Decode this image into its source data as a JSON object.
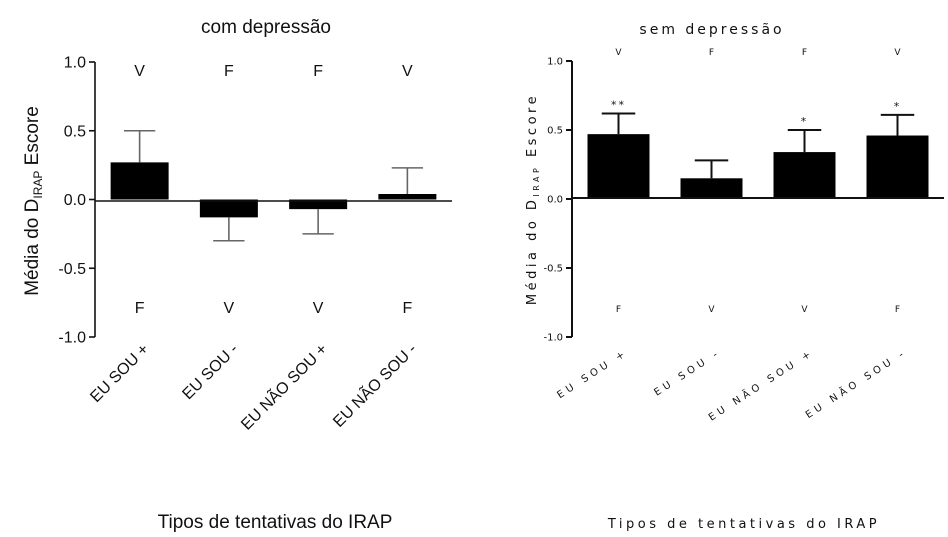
{
  "chart_data": [
    {
      "type": "bar",
      "title": "com depressão",
      "xlabel": "Tipos de tentativas do IRAP",
      "ylabel": {
        "prefix": "Média do D",
        "sub": "IRAP",
        "suffix": " Escore"
      },
      "categories": [
        "EU SOU +",
        "EU SOU -",
        "EU NÃO SOU +",
        "EU NÃO SOU -"
      ],
      "values": [
        0.27,
        -0.13,
        -0.07,
        0.04
      ],
      "error": [
        0.23,
        0.17,
        0.18,
        0.19
      ],
      "error_direction": [
        "up",
        "down",
        "down",
        "up"
      ],
      "ylim": [
        -1.0,
        1.0
      ],
      "yticks": [
        "-1.0",
        "-0.5",
        "0.0",
        "0.5",
        "1.0"
      ],
      "top_labels": [
        "V",
        "F",
        "F",
        "V"
      ],
      "bottom_labels": [
        "F",
        "V",
        "V",
        "F"
      ],
      "significance": [
        "",
        "",
        "",
        ""
      ],
      "grid": false,
      "legend": "none"
    },
    {
      "type": "bar",
      "title": "sem depressão",
      "xlabel": "Tipos de tentativas do IRAP",
      "ylabel": {
        "prefix": "Média do D",
        "sub": "IRAP",
        "suffix": " Escore"
      },
      "categories": [
        "EU SOU +",
        "EU SOU -",
        "EU NÃO SOU +",
        "EU NÃO SOU -"
      ],
      "values": [
        0.47,
        0.15,
        0.34,
        0.46
      ],
      "error": [
        0.15,
        0.13,
        0.16,
        0.15
      ],
      "error_direction": [
        "up",
        "up",
        "up",
        "up"
      ],
      "ylim": [
        -1.0,
        1.0
      ],
      "yticks": [
        "-1.0",
        "-0.5",
        "0.0",
        "0.5",
        "1.0"
      ],
      "top_labels": [
        "V",
        "F",
        "F",
        "V"
      ],
      "bottom_labels": [
        "F",
        "V",
        "V",
        "F"
      ],
      "significance": [
        "**",
        "",
        "*",
        "*"
      ],
      "grid": false,
      "legend": "none"
    }
  ]
}
